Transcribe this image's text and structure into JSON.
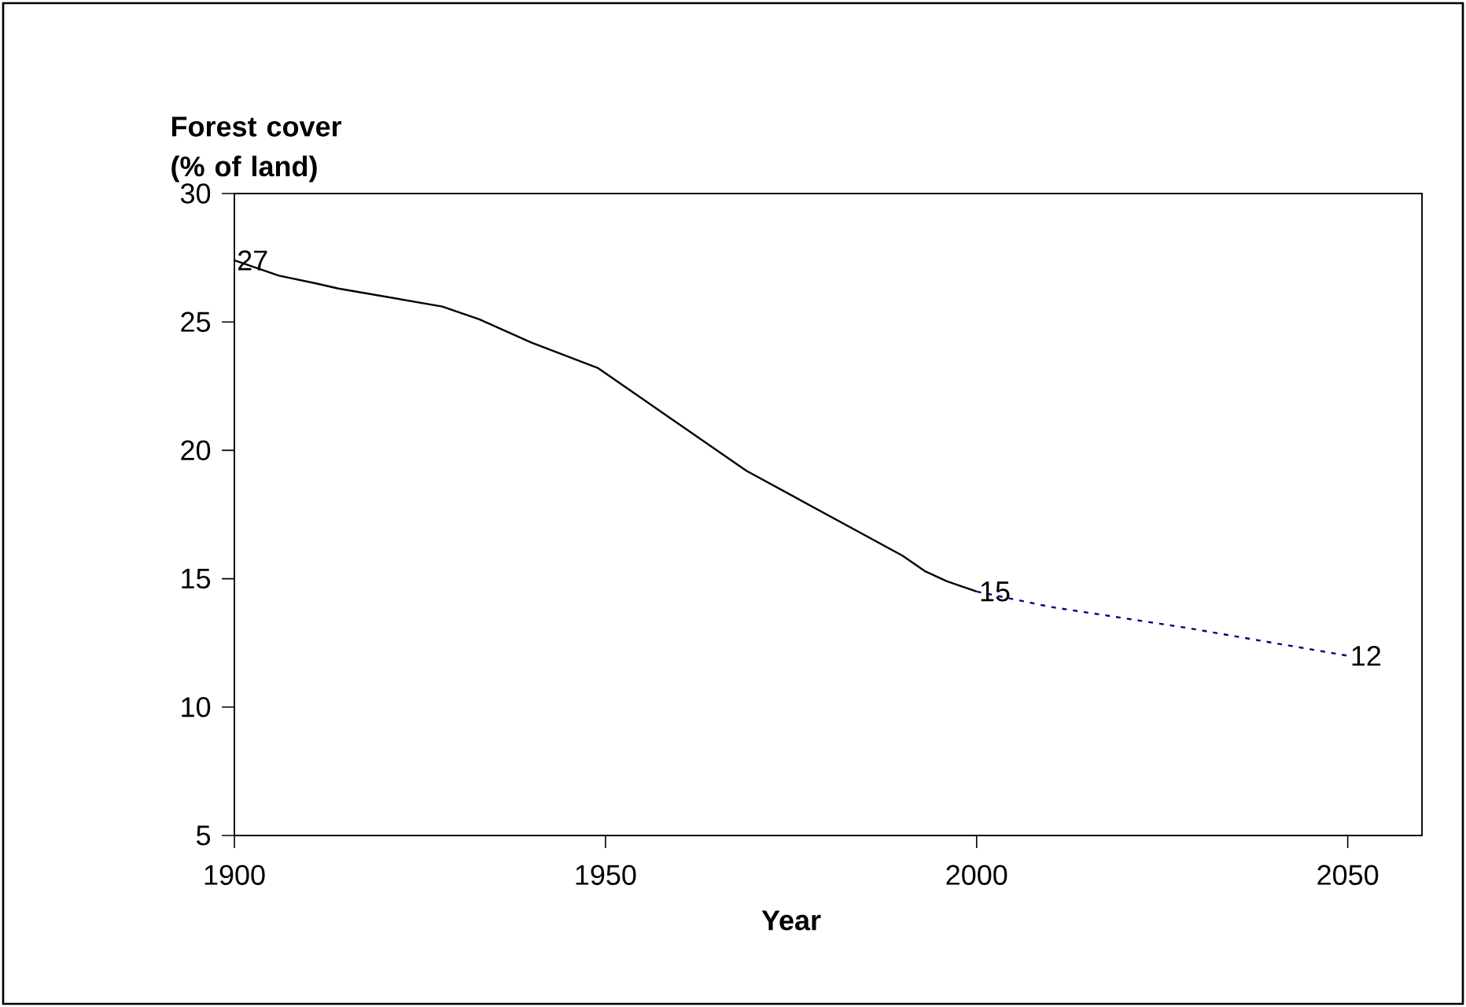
{
  "chart_data": {
    "type": "line",
    "xlabel": "Year",
    "ylabel": "Forest cover (% of land)",
    "xlim": [
      1900,
      2060
    ],
    "xticks": [
      1900,
      1950,
      2000,
      2050
    ],
    "ylim": [
      5,
      30
    ],
    "yticks": [
      5,
      10,
      15,
      20,
      25,
      30
    ],
    "grid": false,
    "legend": false,
    "marker": "none",
    "series": [
      {
        "color": "#000000",
        "line_style": "solid",
        "x": [
          1900,
          1906,
          1911,
          1914,
          1928,
          1933,
          1940,
          1949,
          1958,
          1969,
          1976,
          1990,
          1993,
          1996,
          2000
        ],
        "values": [
          27.4,
          26.8,
          26.5,
          26.3,
          25.6,
          25.1,
          24.2,
          23.2,
          21.4,
          19.2,
          18.1,
          15.9,
          15.3,
          14.9,
          14.5
        ]
      },
      {
        "color": "#000080",
        "line_style": "dotted",
        "x": [
          2000,
          2010,
          2028,
          2050
        ],
        "values": [
          14.5,
          13.9,
          13.1,
          12.0
        ]
      }
    ],
    "annotations": [
      {
        "text": "27",
        "x": 1900,
        "y": 27.4
      },
      {
        "text": "15",
        "x": 2000,
        "y": 14.5
      },
      {
        "text": "12",
        "x": 2050,
        "y": 12.0
      }
    ]
  }
}
